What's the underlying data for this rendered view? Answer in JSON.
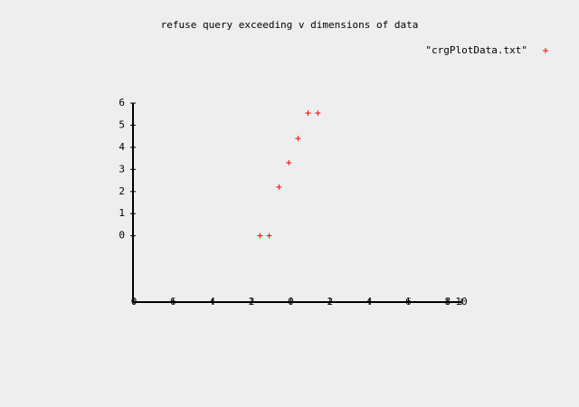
{
  "chart_data": {
    "type": "scatter",
    "title": "refuse query exceeding v dimensions of data",
    "series": [
      {
        "name": "\"crgPlotData.txt\"",
        "color": "#ff0000",
        "x": [
          -1.57,
          -1.1,
          -0.6,
          -0.1,
          0.37,
          0.88,
          1.38
        ],
        "values": [
          0,
          0,
          2.2,
          3.3,
          4.4,
          5.55,
          5.55
        ]
      }
    ],
    "xlim": [
      -8,
      8.7
    ],
    "ylim": [
      -3,
      6
    ],
    "xticks": [
      {
        "value": -8,
        "label": "0"
      },
      {
        "value": -6,
        "label": "6"
      },
      {
        "value": -4,
        "label": "4"
      },
      {
        "value": -2,
        "label": "2"
      },
      0,
      2,
      4,
      6,
      8,
      {
        "value": 8.7,
        "label": "10"
      }
    ],
    "yticks": [
      0,
      1,
      2,
      3,
      4,
      5,
      6
    ],
    "legend": "top-right",
    "grid": false
  }
}
